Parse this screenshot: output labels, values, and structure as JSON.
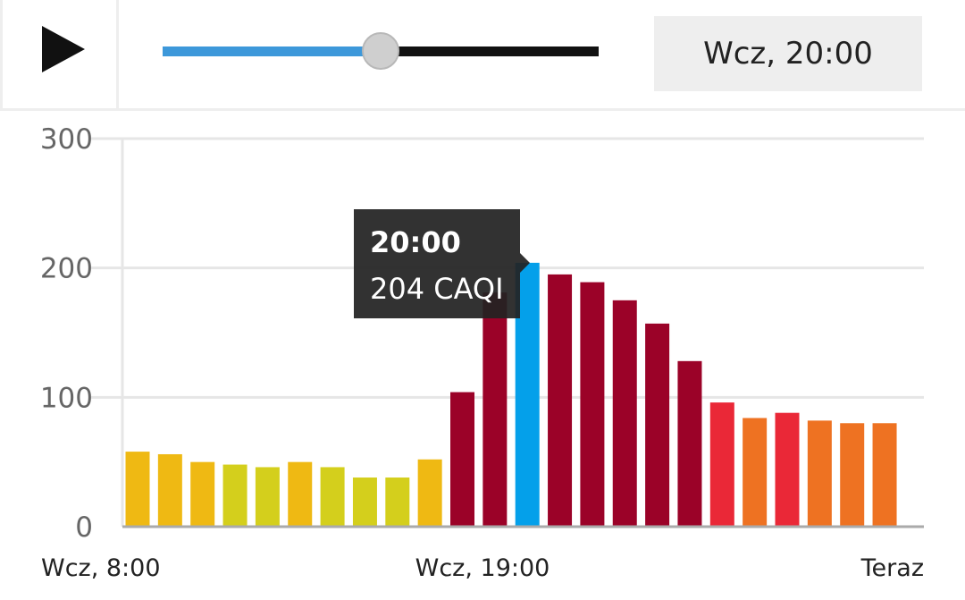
{
  "player": {
    "play_icon": "play-icon",
    "slider_progress": 0.5,
    "slider_fill_color": "#3d98da",
    "current_time_label": "Wcz, 20:00"
  },
  "chart_data": {
    "type": "bar",
    "title": "",
    "xlabel": "",
    "ylabel": "",
    "ylim": [
      0,
      300
    ],
    "y_ticks": [
      "0",
      "100",
      "200",
      "300"
    ],
    "x_tick_labels": [
      {
        "index": 0,
        "label": "Wcz, 8:00"
      },
      {
        "index": 11,
        "label": "Wcz, 19:00"
      },
      {
        "index": 24,
        "label": "Teraz"
      }
    ],
    "grid": true,
    "values": [
      58,
      56,
      50,
      48,
      46,
      50,
      46,
      38,
      38,
      52,
      104,
      181,
      204,
      195,
      189,
      175,
      157,
      128,
      96,
      84,
      88,
      82,
      80,
      80
    ],
    "colors": [
      "#efb913",
      "#efb913",
      "#efb913",
      "#d4cf1c",
      "#d4cf1c",
      "#efb913",
      "#d4cf1c",
      "#d4cf1c",
      "#d4cf1c",
      "#efb913",
      "#9b0228",
      "#9b0228",
      "#04a0ea",
      "#9b0228",
      "#9b0228",
      "#9b0228",
      "#9b0228",
      "#9b0228",
      "#ea2837",
      "#ee7222",
      "#ea2837",
      "#ee7222",
      "#ee7222",
      "#ee7222"
    ],
    "selected_index": 12,
    "tooltip": {
      "time": "20:00",
      "value": "204 CAQI"
    }
  }
}
